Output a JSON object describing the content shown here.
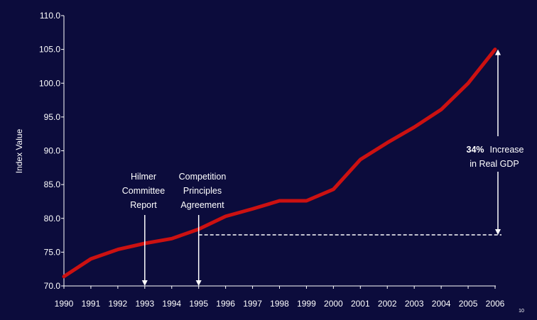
{
  "chart_data": {
    "type": "line",
    "title": "",
    "xlabel": "",
    "ylabel": "Index Value",
    "x": [
      "1990",
      "1991",
      "1992",
      "1993",
      "1994",
      "1995",
      "1996",
      "1997",
      "1998",
      "1999",
      "2000",
      "2001",
      "2002",
      "2003",
      "2004",
      "2005",
      "2006"
    ],
    "series": [
      {
        "values": [
          71.4,
          74.0,
          75.4,
          76.3,
          77.0,
          78.4,
          80.3,
          81.4,
          82.6,
          82.6,
          84.3,
          88.7,
          91.2,
          93.5,
          96.1,
          100.0,
          105.0
        ]
      }
    ],
    "ylim": [
      70,
      110
    ],
    "yticks": [
      "70.0",
      "75.0",
      "80.0",
      "85.0",
      "90.0",
      "95.0",
      "100.0",
      "105.0",
      "110.0"
    ],
    "grid": false,
    "colors": {
      "background": "#0c0c3c",
      "line": "#cc1111",
      "text": "#ffffff",
      "axis": "#ffffff"
    },
    "annotations": {
      "hilmer": {
        "lines": [
          "Hilmer",
          "Committee",
          "Report"
        ],
        "x": "1993"
      },
      "competition": {
        "lines": [
          "Competition",
          "Principles",
          "Agreement"
        ],
        "x": "1995"
      },
      "increase": {
        "bold": "34%",
        "rest": "Increase",
        "line2": "in Real GDP"
      }
    }
  },
  "page_number": "10"
}
